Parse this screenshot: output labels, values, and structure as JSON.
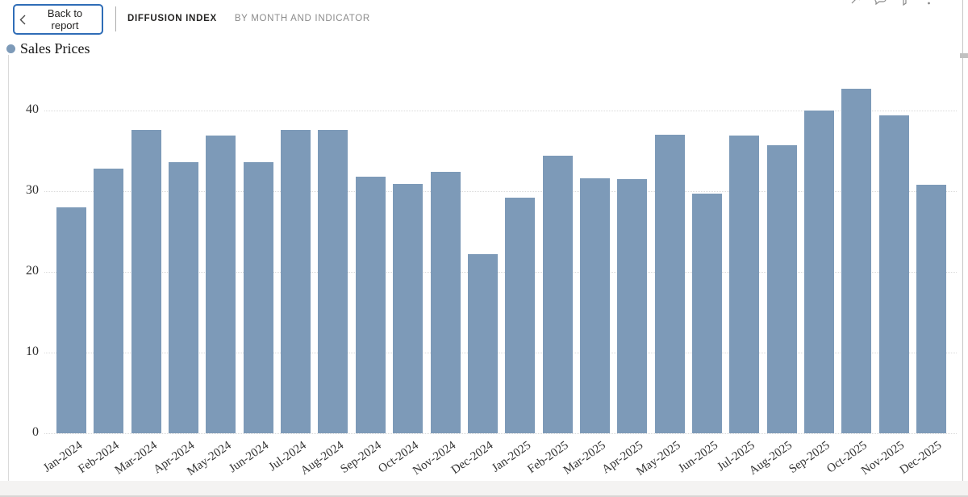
{
  "header": {
    "back_button": {
      "label": "Back to report"
    },
    "title": "DIFFUSION INDEX",
    "subtitle": "BY MONTH AND INDICATOR",
    "toolbar_icons": [
      "pin",
      "comment",
      "filter",
      "more-options"
    ]
  },
  "legend": {
    "items": [
      {
        "label": "Sales Prices",
        "color": "#7d9ab8"
      }
    ]
  },
  "chart_data": {
    "type": "bar",
    "title": "DIFFUSION INDEX BY MONTH AND INDICATOR",
    "categories": [
      "Jan-2024",
      "Feb-2024",
      "Mar-2024",
      "Apr-2024",
      "May-2024",
      "Jun-2024",
      "Jul-2024",
      "Aug-2024",
      "Sep-2024",
      "Oct-2024",
      "Nov-2024",
      "Dec-2024",
      "Jan-2025",
      "Feb-2025",
      "Mar-2025",
      "Apr-2025",
      "May-2025",
      "Jun-2025",
      "Jul-2025",
      "Aug-2025",
      "Sep-2025",
      "Oct-2025",
      "Nov-2025",
      "Dec-2025"
    ],
    "series": [
      {
        "name": "Sales Prices",
        "values": [
          28.0,
          32.8,
          37.6,
          33.6,
          36.9,
          33.6,
          37.6,
          37.6,
          31.8,
          30.9,
          32.4,
          22.2,
          29.2,
          34.4,
          31.6,
          31.5,
          37.0,
          29.7,
          36.9,
          35.7,
          40.0,
          42.7,
          39.4,
          30.8
        ]
      }
    ],
    "xlabel": "",
    "ylabel": "",
    "ylim": [
      0,
      45
    ],
    "yticks": [
      0,
      10,
      20,
      30,
      40
    ],
    "bar_color": "#7d9ab8",
    "grid": "horizontal-dotted",
    "legend_position": "top-left",
    "x_tick_rotation_deg": -35
  },
  "colors": {
    "bar": "#7d9ab8",
    "back_button_border": "#2f6db7",
    "grid": "#d9d9d9",
    "subtitle_text": "#8b8b8b",
    "footer_background": "#f4f3f2"
  }
}
